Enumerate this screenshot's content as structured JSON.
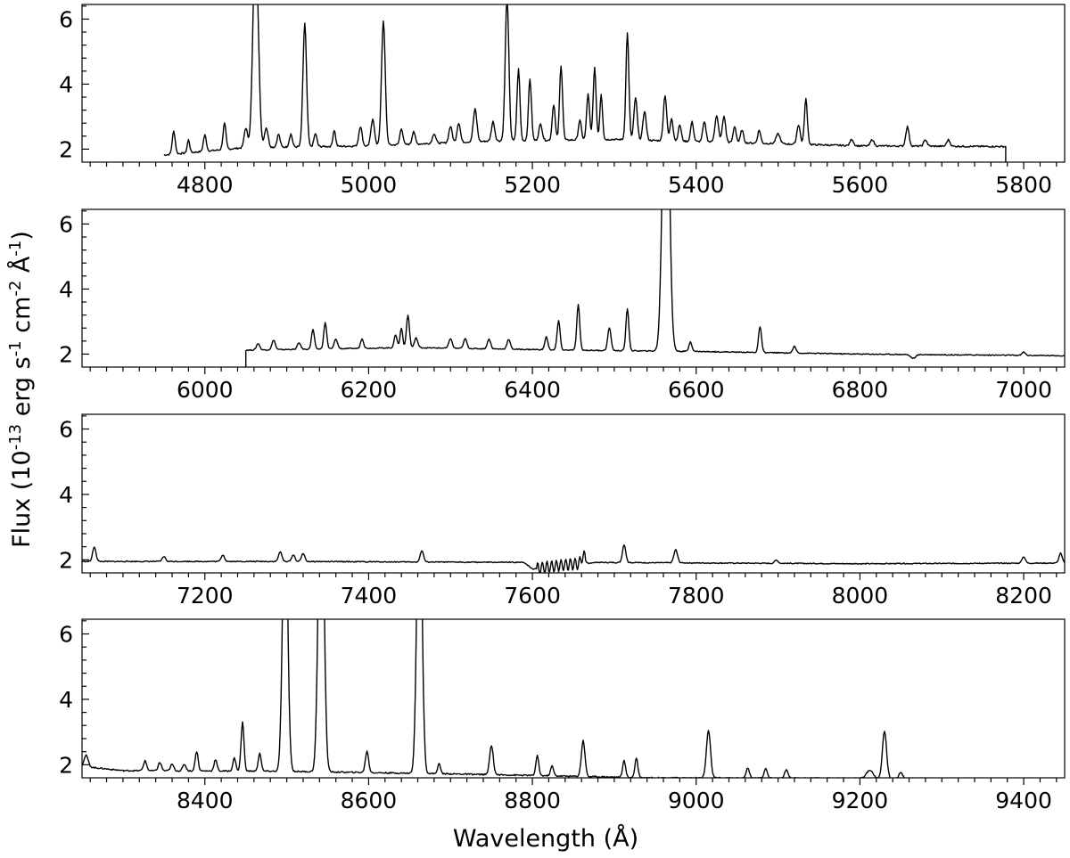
{
  "chart_data": {
    "type": "line",
    "ylabel_parts": {
      "prefix": "Flux (10",
      "exp1": "-13",
      "mid1": " erg s",
      "exp2": "-1",
      "mid2": " cm",
      "exp3": "-2",
      "mid3": " Å",
      "exp4": "-1",
      "suffix": ")"
    },
    "xlabel": "Wavelength (Å)",
    "shared_ylim": [
      1.6,
      6.45
    ],
    "y_ticks": [
      2,
      4,
      6
    ],
    "y_minor_step": 0.4,
    "panels": [
      {
        "name": "panel-1",
        "xlim": [
          4650,
          5850
        ],
        "x_ticks": [
          4800,
          5000,
          5200,
          5400,
          5600,
          5800
        ],
        "x_minor_step": 20,
        "data_start": 4750,
        "data_end": 5778,
        "continuum": [
          [
            4750,
            1.82
          ],
          [
            4850,
            2.05
          ],
          [
            5000,
            2.1
          ],
          [
            5150,
            2.25
          ],
          [
            5300,
            2.3
          ],
          [
            5450,
            2.2
          ],
          [
            5600,
            2.1
          ],
          [
            5778,
            2.08
          ]
        ],
        "lines": [
          [
            4762,
            0.7,
            1.8
          ],
          [
            4780,
            0.4,
            1.5
          ],
          [
            4800,
            0.5,
            1.8
          ],
          [
            4824,
            0.8,
            1.8
          ],
          [
            4850,
            0.6,
            2
          ],
          [
            4862,
            6.5,
            3.2
          ],
          [
            4875,
            0.6,
            2.2
          ],
          [
            4890,
            0.4,
            1.8
          ],
          [
            4905,
            0.4,
            1.8
          ],
          [
            4922,
            3.8,
            2.2
          ],
          [
            4935,
            0.4,
            1.8
          ],
          [
            4958,
            0.5,
            1.6
          ],
          [
            4990,
            0.6,
            2
          ],
          [
            5005,
            0.8,
            2.2
          ],
          [
            5018,
            3.8,
            2.3
          ],
          [
            5040,
            0.5,
            1.8
          ],
          [
            5055,
            0.4,
            1.8
          ],
          [
            5080,
            0.3,
            2
          ],
          [
            5100,
            0.5,
            2
          ],
          [
            5110,
            0.6,
            2
          ],
          [
            5130,
            1.0,
            2.2
          ],
          [
            5152,
            0.6,
            2
          ],
          [
            5169,
            4.4,
            2.2
          ],
          [
            5183,
            2.2,
            1.8
          ],
          [
            5197,
            1.9,
            1.8
          ],
          [
            5210,
            0.5,
            2
          ],
          [
            5226,
            1.1,
            1.8
          ],
          [
            5235,
            2.3,
            1.8
          ],
          [
            5258,
            0.6,
            1.8
          ],
          [
            5268,
            1.4,
            1.8
          ],
          [
            5276,
            2.2,
            1.8
          ],
          [
            5284,
            1.4,
            1.6
          ],
          [
            5316,
            3.3,
            1.8
          ],
          [
            5326,
            1.3,
            2
          ],
          [
            5337,
            0.9,
            2
          ],
          [
            5362,
            1.4,
            2
          ],
          [
            5370,
            0.7,
            1.8
          ],
          [
            5380,
            0.5,
            1.8
          ],
          [
            5395,
            0.6,
            1.8
          ],
          [
            5410,
            0.6,
            2
          ],
          [
            5425,
            0.8,
            2.2
          ],
          [
            5434,
            0.8,
            2
          ],
          [
            5447,
            0.5,
            1.8
          ],
          [
            5456,
            0.4,
            1.8
          ],
          [
            5477,
            0.4,
            1.8
          ],
          [
            5500,
            0.3,
            2.5
          ],
          [
            5525,
            0.6,
            2
          ],
          [
            5534,
            1.4,
            1.8
          ],
          [
            5590,
            0.2,
            2
          ],
          [
            5615,
            0.2,
            2
          ],
          [
            5658,
            0.6,
            2
          ],
          [
            5680,
            0.2,
            2
          ],
          [
            5708,
            0.2,
            2
          ]
        ],
        "noise_amp": 0.05
      },
      {
        "name": "panel-2",
        "xlim": [
          5850,
          7050
        ],
        "x_ticks": [
          6000,
          6200,
          6400,
          6600,
          6800,
          7000
        ],
        "x_minor_step": 20,
        "data_start": 6050,
        "data_end": 7050,
        "continuum": [
          [
            6050,
            2.12
          ],
          [
            6250,
            2.2
          ],
          [
            6450,
            2.12
          ],
          [
            6600,
            2.08
          ],
          [
            6800,
            2.0
          ],
          [
            7050,
            1.95
          ]
        ],
        "lines": [
          [
            6065,
            0.2,
            2
          ],
          [
            6084,
            0.3,
            2
          ],
          [
            6115,
            0.2,
            2
          ],
          [
            6132,
            0.6,
            1.8
          ],
          [
            6147,
            0.8,
            1.8
          ],
          [
            6160,
            0.3,
            2
          ],
          [
            6192,
            0.3,
            1.8
          ],
          [
            6233,
            0.4,
            1.8
          ],
          [
            6240,
            0.6,
            1.6
          ],
          [
            6248,
            1.0,
            1.8
          ],
          [
            6258,
            0.3,
            2
          ],
          [
            6300,
            0.3,
            2
          ],
          [
            6318,
            0.3,
            2
          ],
          [
            6347,
            0.3,
            2
          ],
          [
            6371,
            0.3,
            2
          ],
          [
            6417,
            0.4,
            1.8
          ],
          [
            6432,
            0.9,
            1.8
          ],
          [
            6456,
            1.4,
            1.8
          ],
          [
            6494,
            0.7,
            2
          ],
          [
            6516,
            1.3,
            1.8
          ],
          [
            6563,
            11.0,
            3.8
          ],
          [
            6593,
            0.3,
            1.8
          ],
          [
            6678,
            0.8,
            1.8
          ],
          [
            6720,
            0.2,
            2
          ],
          [
            7000,
            0.1,
            2
          ]
        ],
        "noise_amp": 0.03,
        "notches": [
          [
            6865,
            -0.12,
            3
          ]
        ]
      },
      {
        "name": "panel-3",
        "xlim": [
          7050,
          8250
        ],
        "x_ticks": [
          7200,
          7400,
          7600,
          7800,
          8000,
          8200
        ],
        "x_minor_step": 20,
        "data_start": 7050,
        "data_end": 8250,
        "continuum": [
          [
            7050,
            1.95
          ],
          [
            7300,
            1.95
          ],
          [
            7590,
            1.92
          ],
          [
            7600,
            1.72
          ],
          [
            7640,
            1.85
          ],
          [
            7680,
            1.92
          ],
          [
            8000,
            1.88
          ],
          [
            8250,
            1.9
          ]
        ],
        "lines": [
          [
            7065,
            0.45,
            2
          ],
          [
            7150,
            0.15,
            2
          ],
          [
            7222,
            0.2,
            2
          ],
          [
            7292,
            0.3,
            2
          ],
          [
            7308,
            0.2,
            2
          ],
          [
            7320,
            0.25,
            2
          ],
          [
            7465,
            0.35,
            2
          ],
          [
            7662,
            0.25,
            2
          ],
          [
            7712,
            0.55,
            2
          ],
          [
            7775,
            0.4,
            2.2
          ],
          [
            7898,
            0.1,
            2
          ],
          [
            8200,
            0.2,
            2
          ],
          [
            8245,
            0.3,
            2
          ]
        ],
        "noise_amp": 0.03,
        "band": [
          7605,
          7665,
          0.18
        ]
      },
      {
        "name": "panel-4",
        "xlim": [
          8250,
          9450
        ],
        "x_ticks": [
          8400,
          8600,
          8800,
          9000,
          9200,
          9400
        ],
        "x_minor_step": 20,
        "data_start": 8250,
        "data_end": 9280,
        "continuum": [
          [
            8250,
            1.95
          ],
          [
            8300,
            1.82
          ],
          [
            8500,
            1.8
          ],
          [
            8700,
            1.72
          ],
          [
            8950,
            1.6
          ],
          [
            9280,
            1.58
          ]
        ],
        "lines": [
          [
            8255,
            0.35,
            2.5
          ],
          [
            8327,
            0.3,
            2
          ],
          [
            8345,
            0.25,
            2
          ],
          [
            8360,
            0.2,
            2
          ],
          [
            8375,
            0.2,
            2
          ],
          [
            8390,
            0.6,
            1.8
          ],
          [
            8413,
            0.35,
            1.8
          ],
          [
            8436,
            0.4,
            1.8
          ],
          [
            8446,
            1.5,
            1.8
          ],
          [
            8467,
            0.55,
            1.8
          ],
          [
            8498,
            9.0,
            3
          ],
          [
            8542,
            11.0,
            3.2
          ],
          [
            8598,
            0.65,
            2
          ],
          [
            8662,
            10.0,
            3
          ],
          [
            8686,
            0.3,
            1.8
          ],
          [
            8750,
            0.9,
            2.2
          ],
          [
            8806,
            0.6,
            1.8
          ],
          [
            8824,
            0.3,
            1.8
          ],
          [
            8862,
            1.1,
            2.2
          ],
          [
            8912,
            0.5,
            1.8
          ],
          [
            8927,
            0.6,
            1.8
          ],
          [
            9015,
            1.45,
            2.5
          ],
          [
            9063,
            0.3,
            2
          ],
          [
            9085,
            0.3,
            2
          ],
          [
            9110,
            0.25,
            2
          ],
          [
            9212,
            0.25,
            4
          ],
          [
            9230,
            1.45,
            2.5
          ],
          [
            9250,
            0.2,
            2
          ]
        ],
        "noise_amp": 0.04
      }
    ]
  }
}
